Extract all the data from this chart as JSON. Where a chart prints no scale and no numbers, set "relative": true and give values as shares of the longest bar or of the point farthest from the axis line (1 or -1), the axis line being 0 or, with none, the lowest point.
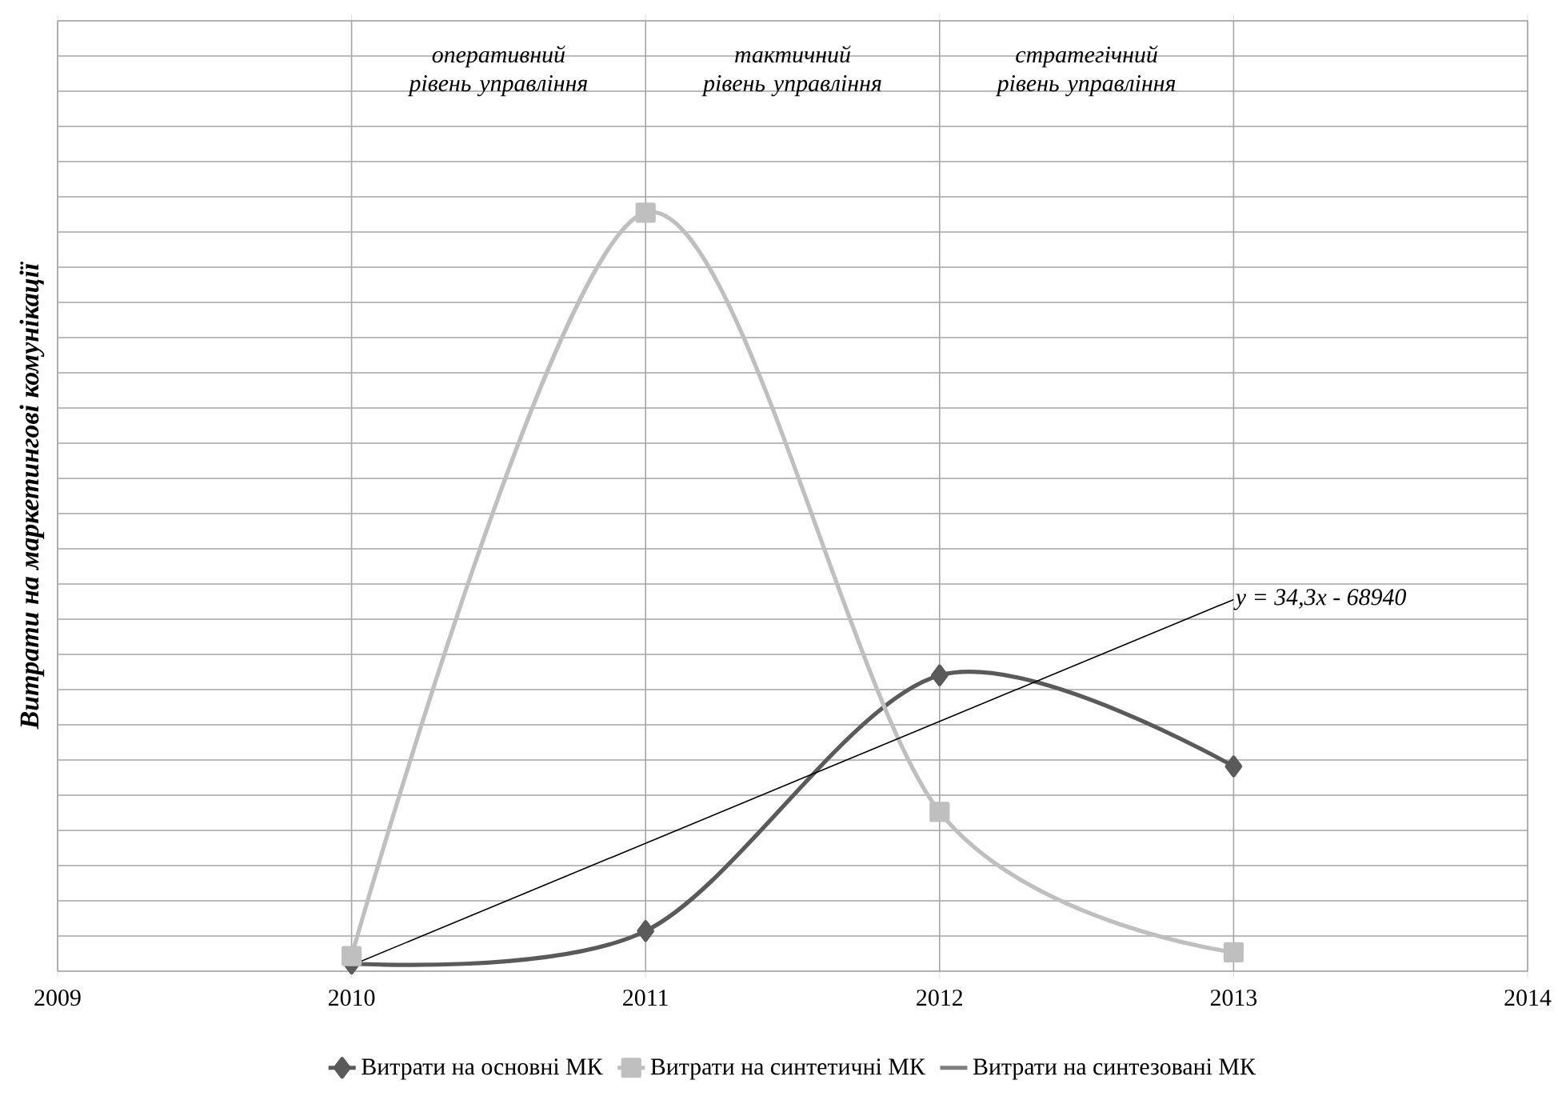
{
  "chart_data": {
    "type": "line",
    "ylabel": "Витрати на маркетингові комунікації",
    "relative": true,
    "x": [
      2010,
      2011,
      2012,
      2013
    ],
    "xlim": [
      2009,
      2014
    ],
    "xticks": [
      2009,
      2010,
      2011,
      2012,
      2013,
      2014
    ],
    "grid": true,
    "legend": "bottom",
    "series": [
      {
        "name": "Витрати на основні МК",
        "color": "#5a5a5a",
        "marker": "diamond",
        "values": [
          0.01,
          0.053,
          0.39,
          0.27
        ]
      },
      {
        "name": "Витрати на синтетичні МК",
        "color": "#bfbfbf",
        "marker": "square",
        "values": [
          0.02,
          1,
          0.21,
          0.025
        ]
      },
      {
        "name": "Витрати на синтезовані МК",
        "color": "#7f7f7f",
        "marker": "none",
        "values": [
          null,
          null,
          null,
          null
        ]
      },
      {
        "type": "line",
        "color": "#000000",
        "marker": "none",
        "x": [
          2010,
          2013
        ],
        "values": [
          0.008,
          0.49
        ]
      }
    ],
    "annotations": [
      {
        "text": "y = 34,3x - 68940",
        "x": 2013,
        "y": 0.49
      },
      "оперативний рівень управління",
      "тактичний рівень управління",
      "стратегічний рівень управління"
    ]
  }
}
